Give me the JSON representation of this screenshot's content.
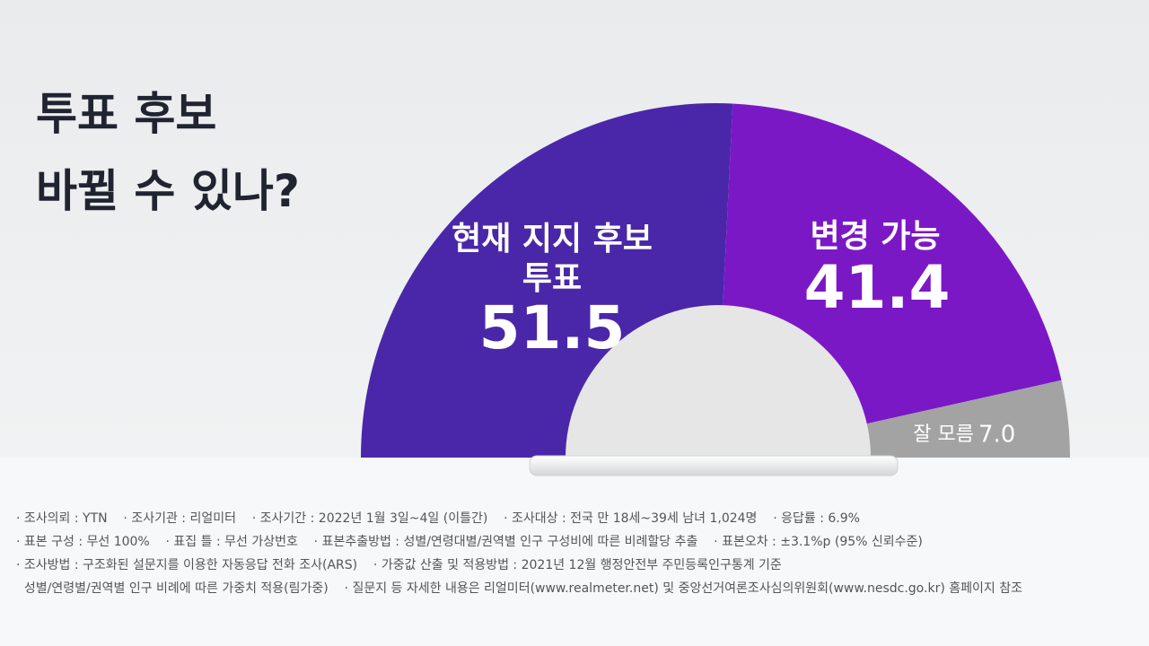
{
  "chart_data": {
    "type": "halfpie",
    "title": "투표 후보\n바뀔 수 있나?",
    "unit": "%",
    "categories": [
      "현재 지지 후보\n투표",
      "변경 가능",
      "잘 모름"
    ],
    "values": [
      51.5,
      41.4,
      7.0
    ],
    "value_labels": [
      "51.5",
      "41.4",
      "7.0"
    ],
    "colors": [
      "#4a27a8",
      "#7b18c6",
      "#a3a3a3"
    ]
  },
  "notes": [
    "· 조사의뢰 : YTN    · 조사기관 : 리얼미터    · 조사기간 : 2022년 1월 3일~4일 (이틀간)    · 조사대상 : 전국 만 18세~39세 남녀 1,024명    · 응답률 : 6.9%",
    "· 표본 구성 : 무선 100%    · 표집 틀 : 무선 가상번호    · 표본추출방법 : 성별/연령대별/권역별 인구 구성비에 따른 비례할당 추출    · 표본오차 : ±3.1%p (95% 신뢰수준)",
    "· 조사방법 : 구조화된 설문지를 이용한 자동응답 전화 조사(ARS)    · 가중값 산출 및 적용방법 : 2021년 12월 행정안전부 주민등록인구통계 기준",
    "  성별/연령별/권역별 인구 비례에 따른 가중치 적용(림가중)    · 질문지 등 자세한 내용은 리얼미터(www.realmeter.net) 및 중앙선거여론조사심의위원회(www.nesdc.go.kr) 홈페이지 참조"
  ]
}
